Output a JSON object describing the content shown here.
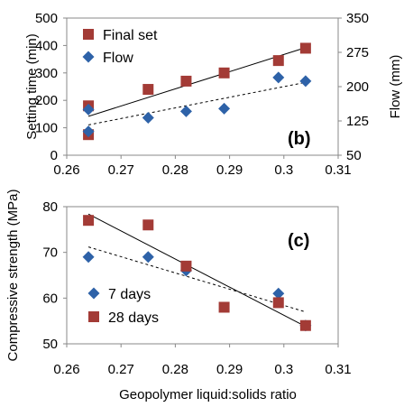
{
  "chart_data": [
    {
      "panel": "(b)",
      "type": "scatter",
      "xlabel": "",
      "ylabel": "Setting time (min)",
      "y2label": "Flow (mm)",
      "xlim": [
        0.26,
        0.31
      ],
      "ylim": [
        0,
        500
      ],
      "y2lim": [
        50,
        350
      ],
      "x_ticks": [
        "0.26",
        "0.27",
        "0.28",
        "0.29",
        "0.3",
        "0.31"
      ],
      "y_ticks": [
        "0",
        "100",
        "200",
        "300",
        "400",
        "500"
      ],
      "y2_ticks": [
        "50",
        "125",
        "200",
        "275",
        "350"
      ],
      "legend_position": "top-left",
      "series": [
        {
          "name": "Final set",
          "axis": "left",
          "marker": "square",
          "color": "#a33b36",
          "trendline": "solid",
          "x": [
            0.264,
            0.264,
            0.275,
            0.282,
            0.289,
            0.299,
            0.304
          ],
          "y": [
            180,
            75,
            240,
            270,
            300,
            345,
            390
          ]
        },
        {
          "name": "Flow",
          "axis": "right",
          "marker": "diamond",
          "color": "#2e62a8",
          "trendline": "dashed",
          "x": [
            0.264,
            0.264,
            0.275,
            0.282,
            0.289,
            0.299,
            0.304
          ],
          "y": [
            150,
            102,
            132,
            146,
            152,
            220,
            212
          ]
        }
      ]
    },
    {
      "panel": "(c)",
      "type": "scatter",
      "xlabel": "Geopolymer liquid:solids ratio",
      "ylabel": "Compressive strength (MPa)",
      "xlim": [
        0.26,
        0.31
      ],
      "ylim": [
        50,
        80
      ],
      "x_ticks": [
        "0.26",
        "0.27",
        "0.28",
        "0.29",
        "0.3",
        "0.31"
      ],
      "y_ticks": [
        "50",
        "60",
        "70",
        "80"
      ],
      "legend_position": "bottom-left",
      "series": [
        {
          "name": "7 days",
          "marker": "diamond",
          "color": "#2e62a8",
          "trendline": "dashed",
          "x": [
            0.264,
            0.275,
            0.282,
            0.299,
            0.304
          ],
          "y": [
            69,
            69,
            66,
            61,
            54
          ]
        },
        {
          "name": "28 days",
          "marker": "square",
          "color": "#a33b36",
          "trendline": "solid",
          "x": [
            0.264,
            0.275,
            0.282,
            0.289,
            0.299,
            0.304
          ],
          "y": [
            77,
            76,
            67,
            58,
            59,
            54
          ]
        }
      ]
    }
  ]
}
